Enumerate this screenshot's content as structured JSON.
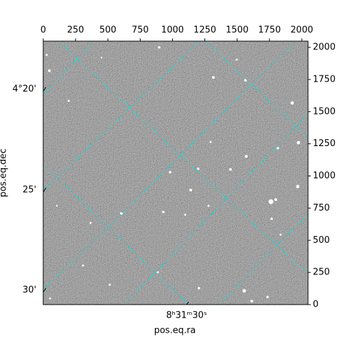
{
  "chart_data": {
    "type": "image",
    "xlabel": "pos.eq.ra",
    "ylabel": "pos.eq.dec",
    "xlim": [
      0,
      2048
    ],
    "ylim": [
      0,
      2048
    ],
    "xticks": [
      0,
      250,
      500,
      750,
      1000,
      1250,
      1500,
      1750,
      2000
    ],
    "yticks": [
      0,
      250,
      500,
      750,
      1000,
      1250,
      1500,
      1750,
      2000
    ],
    "dec_ticks": [
      "4°20'",
      "25'",
      "30'"
    ],
    "ra_ticks": [
      "8ʰ31ᵐ30ˢ"
    ],
    "grid": true,
    "grid_color": "#22d3d3"
  }
}
